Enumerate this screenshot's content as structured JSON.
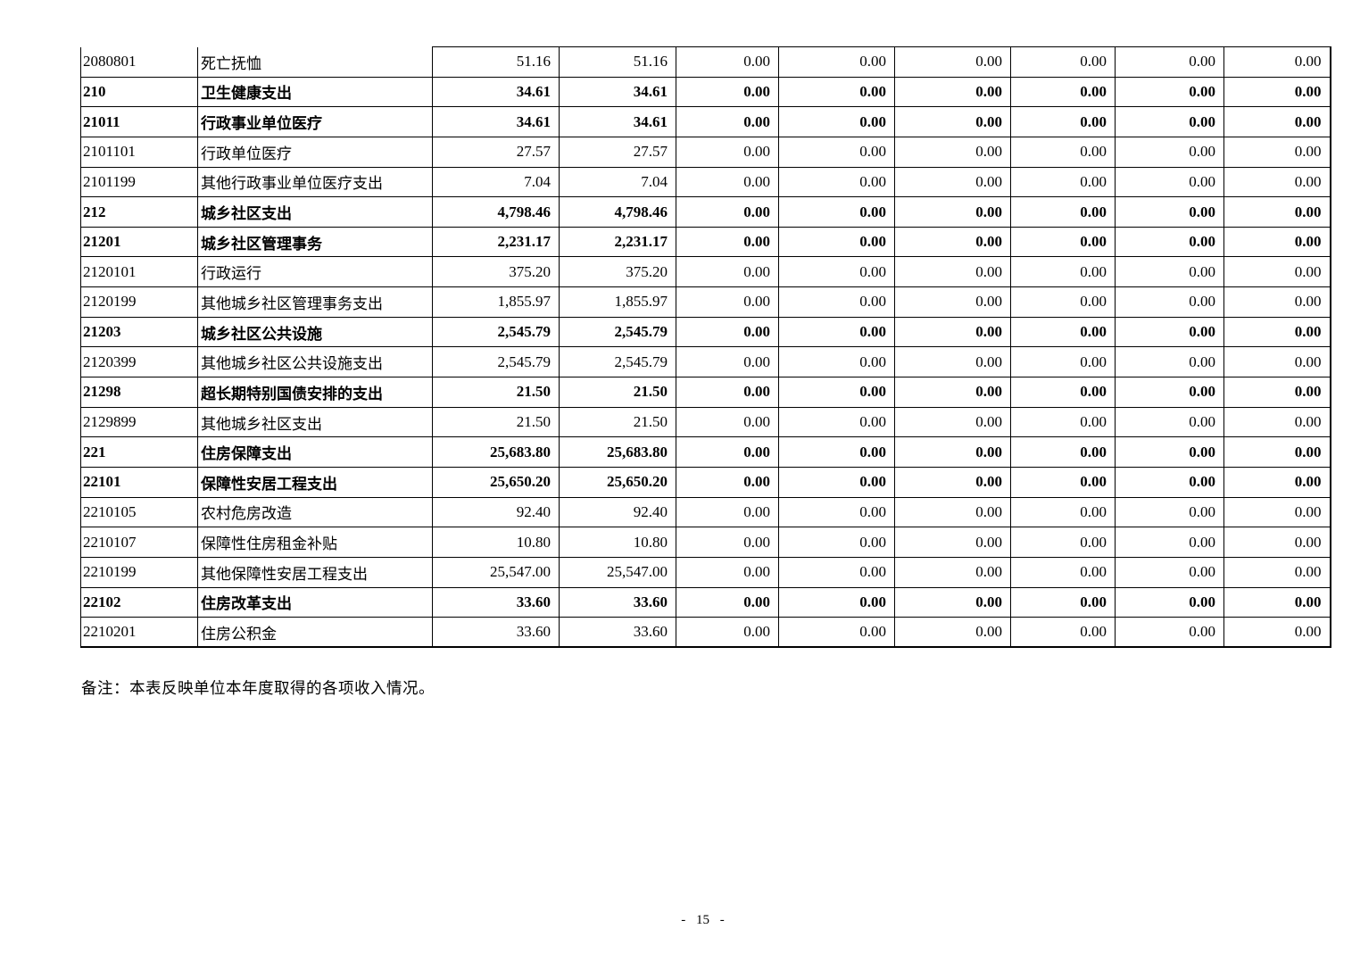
{
  "page": {
    "background_color": "#ffffff",
    "text_color": "#000000",
    "border_color": "#000000",
    "note": "备注：本表反映单位本年度取得的各项收入情况。",
    "page_number": "- 15 -"
  },
  "table": {
    "description": "expenditure-classification-table-continuation (no header row visible on this page)",
    "value_columns_count": 8,
    "rows": [
      {
        "code": "2080801",
        "name": "死亡抚恤",
        "bold": false,
        "values": [
          "51.16",
          "51.16",
          "0.00",
          "0.00",
          "0.00",
          "0.00",
          "0.00",
          "0.00"
        ]
      },
      {
        "code": "210",
        "name": "卫生健康支出",
        "bold": true,
        "values": [
          "34.61",
          "34.61",
          "0.00",
          "0.00",
          "0.00",
          "0.00",
          "0.00",
          "0.00"
        ]
      },
      {
        "code": "21011",
        "name": "行政事业单位医疗",
        "bold": true,
        "values": [
          "34.61",
          "34.61",
          "0.00",
          "0.00",
          "0.00",
          "0.00",
          "0.00",
          "0.00"
        ]
      },
      {
        "code": "2101101",
        "name": "行政单位医疗",
        "bold": false,
        "values": [
          "27.57",
          "27.57",
          "0.00",
          "0.00",
          "0.00",
          "0.00",
          "0.00",
          "0.00"
        ]
      },
      {
        "code": "2101199",
        "name": "其他行政事业单位医疗支出",
        "bold": false,
        "values": [
          "7.04",
          "7.04",
          "0.00",
          "0.00",
          "0.00",
          "0.00",
          "0.00",
          "0.00"
        ]
      },
      {
        "code": "212",
        "name": "城乡社区支出",
        "bold": true,
        "values": [
          "4,798.46",
          "4,798.46",
          "0.00",
          "0.00",
          "0.00",
          "0.00",
          "0.00",
          "0.00"
        ]
      },
      {
        "code": "21201",
        "name": "城乡社区管理事务",
        "bold": true,
        "values": [
          "2,231.17",
          "2,231.17",
          "0.00",
          "0.00",
          "0.00",
          "0.00",
          "0.00",
          "0.00"
        ]
      },
      {
        "code": "2120101",
        "name": "行政运行",
        "bold": false,
        "values": [
          "375.20",
          "375.20",
          "0.00",
          "0.00",
          "0.00",
          "0.00",
          "0.00",
          "0.00"
        ]
      },
      {
        "code": "2120199",
        "name": "其他城乡社区管理事务支出",
        "bold": false,
        "values": [
          "1,855.97",
          "1,855.97",
          "0.00",
          "0.00",
          "0.00",
          "0.00",
          "0.00",
          "0.00"
        ]
      },
      {
        "code": "21203",
        "name": "城乡社区公共设施",
        "bold": true,
        "values": [
          "2,545.79",
          "2,545.79",
          "0.00",
          "0.00",
          "0.00",
          "0.00",
          "0.00",
          "0.00"
        ]
      },
      {
        "code": "2120399",
        "name": "其他城乡社区公共设施支出",
        "bold": false,
        "values": [
          "2,545.79",
          "2,545.79",
          "0.00",
          "0.00",
          "0.00",
          "0.00",
          "0.00",
          "0.00"
        ]
      },
      {
        "code": "21298",
        "name": "超长期特别国债安排的支出",
        "bold": true,
        "values": [
          "21.50",
          "21.50",
          "0.00",
          "0.00",
          "0.00",
          "0.00",
          "0.00",
          "0.00"
        ]
      },
      {
        "code": "2129899",
        "name": "其他城乡社区支出",
        "bold": false,
        "values": [
          "21.50",
          "21.50",
          "0.00",
          "0.00",
          "0.00",
          "0.00",
          "0.00",
          "0.00"
        ]
      },
      {
        "code": "221",
        "name": "住房保障支出",
        "bold": true,
        "values": [
          "25,683.80",
          "25,683.80",
          "0.00",
          "0.00",
          "0.00",
          "0.00",
          "0.00",
          "0.00"
        ]
      },
      {
        "code": "22101",
        "name": "保障性安居工程支出",
        "bold": true,
        "values": [
          "25,650.20",
          "25,650.20",
          "0.00",
          "0.00",
          "0.00",
          "0.00",
          "0.00",
          "0.00"
        ]
      },
      {
        "code": "2210105",
        "name": "农村危房改造",
        "bold": false,
        "values": [
          "92.40",
          "92.40",
          "0.00",
          "0.00",
          "0.00",
          "0.00",
          "0.00",
          "0.00"
        ]
      },
      {
        "code": "2210107",
        "name": "保障性住房租金补贴",
        "bold": false,
        "values": [
          "10.80",
          "10.80",
          "0.00",
          "0.00",
          "0.00",
          "0.00",
          "0.00",
          "0.00"
        ]
      },
      {
        "code": "2210199",
        "name": "其他保障性安居工程支出",
        "bold": false,
        "values": [
          "25,547.00",
          "25,547.00",
          "0.00",
          "0.00",
          "0.00",
          "0.00",
          "0.00",
          "0.00"
        ]
      },
      {
        "code": "22102",
        "name": "住房改革支出",
        "bold": true,
        "values": [
          "33.60",
          "33.60",
          "0.00",
          "0.00",
          "0.00",
          "0.00",
          "0.00",
          "0.00"
        ]
      },
      {
        "code": "2210201",
        "name": "住房公积金",
        "bold": false,
        "values": [
          "33.60",
          "33.60",
          "0.00",
          "0.00",
          "0.00",
          "0.00",
          "0.00",
          "0.00"
        ]
      }
    ]
  }
}
